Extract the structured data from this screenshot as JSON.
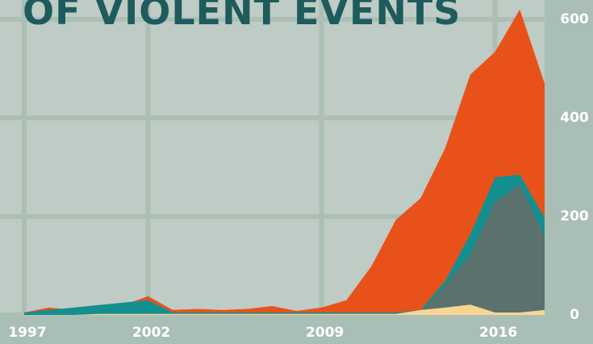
{
  "chart_data": {
    "type": "area",
    "title": "OF VIOLENT EVENTS",
    "x": [
      1997,
      1998,
      1999,
      2000,
      2001,
      2002,
      2003,
      2004,
      2005,
      2006,
      2007,
      2008,
      2009,
      2010,
      2011,
      2012,
      2013,
      2014,
      2015,
      2016,
      2017,
      2018
    ],
    "xlim": [
      1997,
      2018
    ],
    "xticks": [
      1997,
      2002,
      2009,
      2016
    ],
    "ylim": [
      0,
      600
    ],
    "yticks": [
      0,
      200,
      400,
      600
    ],
    "grid": true,
    "series": [
      {
        "color": "#e8521a",
        "values": [
          5,
          15,
          10,
          15,
          20,
          38,
          10,
          12,
          10,
          12,
          18,
          8,
          15,
          30,
          98,
          193,
          237,
          340,
          488,
          534,
          620,
          470
        ]
      },
      {
        "color": "#148f8f",
        "values": [
          5,
          10,
          15,
          20,
          25,
          30,
          5,
          5,
          5,
          5,
          5,
          5,
          5,
          5,
          5,
          5,
          10,
          70,
          164,
          279,
          285,
          197
        ]
      },
      {
        "color": "#5a716d",
        "values": [
          0,
          0,
          0,
          0,
          0,
          0,
          0,
          0,
          0,
          0,
          0,
          0,
          0,
          0,
          0,
          0,
          5,
          60,
          123,
          230,
          265,
          160
        ]
      },
      {
        "color": "#f9d594",
        "values": [
          0,
          0,
          0,
          2,
          2,
          2,
          2,
          2,
          2,
          2,
          2,
          2,
          2,
          2,
          2,
          2,
          10,
          15,
          21,
          5,
          5,
          10
        ]
      }
    ]
  }
}
